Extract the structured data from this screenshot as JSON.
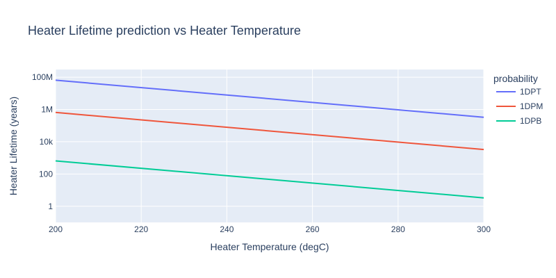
{
  "chart_data": {
    "type": "line",
    "title": "Heater Lifetime prediction vs Heater Temperature",
    "xlabel": "Heater Temperature (degC)",
    "ylabel": "Heater Lifetime (years)",
    "x_scale": "linear",
    "y_scale": "log",
    "xlim": [
      200,
      300
    ],
    "ylim": [
      0.1,
      300000000
    ],
    "x_ticks": [
      200,
      220,
      240,
      260,
      280,
      300
    ],
    "x_tick_labels": [
      "200",
      "220",
      "240",
      "260",
      "280",
      "300"
    ],
    "y_ticks": [
      1,
      100,
      10000,
      1000000,
      100000000
    ],
    "y_tick_labels": [
      "1",
      "100",
      "10k",
      "1M",
      "100M"
    ],
    "grid": true,
    "legend_title": "probability",
    "legend_position": "top-right-outside",
    "background_color": "#e5ecf6",
    "grid_color": "#ffffff",
    "series": [
      {
        "name": "1DPT",
        "color": "#636efa",
        "x": [
          200,
          300
        ],
        "y": [
          65000000,
          330000
        ]
      },
      {
        "name": "1DPM",
        "color": "#ef553b",
        "x": [
          200,
          300
        ],
        "y": [
          650000,
          3300
        ]
      },
      {
        "name": "1DPB",
        "color": "#00cc96",
        "x": [
          200,
          300
        ],
        "y": [
          650,
          3.3
        ]
      }
    ]
  }
}
